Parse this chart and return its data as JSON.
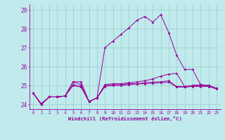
{
  "xlabel": "Windchill (Refroidissement éolien,°C)",
  "xlim": [
    -0.5,
    23.5
  ],
  "ylim": [
    23.75,
    29.3
  ],
  "yticks": [
    24,
    25,
    26,
    27,
    28,
    29
  ],
  "xticks": [
    0,
    1,
    2,
    3,
    4,
    5,
    6,
    7,
    8,
    9,
    10,
    11,
    12,
    13,
    14,
    15,
    16,
    17,
    18,
    19,
    20,
    21,
    22,
    23
  ],
  "bg_color": "#c0eaec",
  "line_color": "#990099",
  "grid_color": "#99cccc",
  "lines": [
    [
      24.6,
      24.0,
      24.4,
      24.4,
      24.45,
      25.2,
      25.2,
      24.15,
      24.35,
      27.0,
      27.35,
      27.7,
      28.05,
      28.45,
      28.65,
      28.35,
      28.75,
      27.8,
      26.6,
      25.85,
      25.85,
      25.05,
      25.0,
      24.85
    ],
    [
      24.6,
      24.0,
      24.4,
      24.4,
      24.45,
      25.2,
      25.05,
      24.15,
      24.35,
      25.05,
      25.1,
      25.1,
      25.15,
      25.2,
      25.25,
      25.35,
      25.5,
      25.6,
      25.65,
      24.95,
      25.0,
      25.05,
      25.0,
      24.85
    ],
    [
      24.6,
      24.0,
      24.4,
      24.4,
      24.45,
      25.05,
      24.95,
      24.15,
      24.35,
      25.0,
      25.05,
      25.05,
      25.1,
      25.1,
      25.15,
      25.18,
      25.2,
      25.25,
      24.95,
      24.95,
      25.0,
      25.0,
      25.0,
      24.85
    ],
    [
      24.6,
      24.05,
      24.4,
      24.4,
      24.45,
      25.0,
      24.92,
      24.15,
      24.35,
      24.95,
      25.0,
      25.0,
      25.05,
      25.08,
      25.1,
      25.12,
      25.15,
      25.18,
      24.92,
      24.92,
      24.95,
      24.95,
      24.95,
      24.82
    ]
  ]
}
